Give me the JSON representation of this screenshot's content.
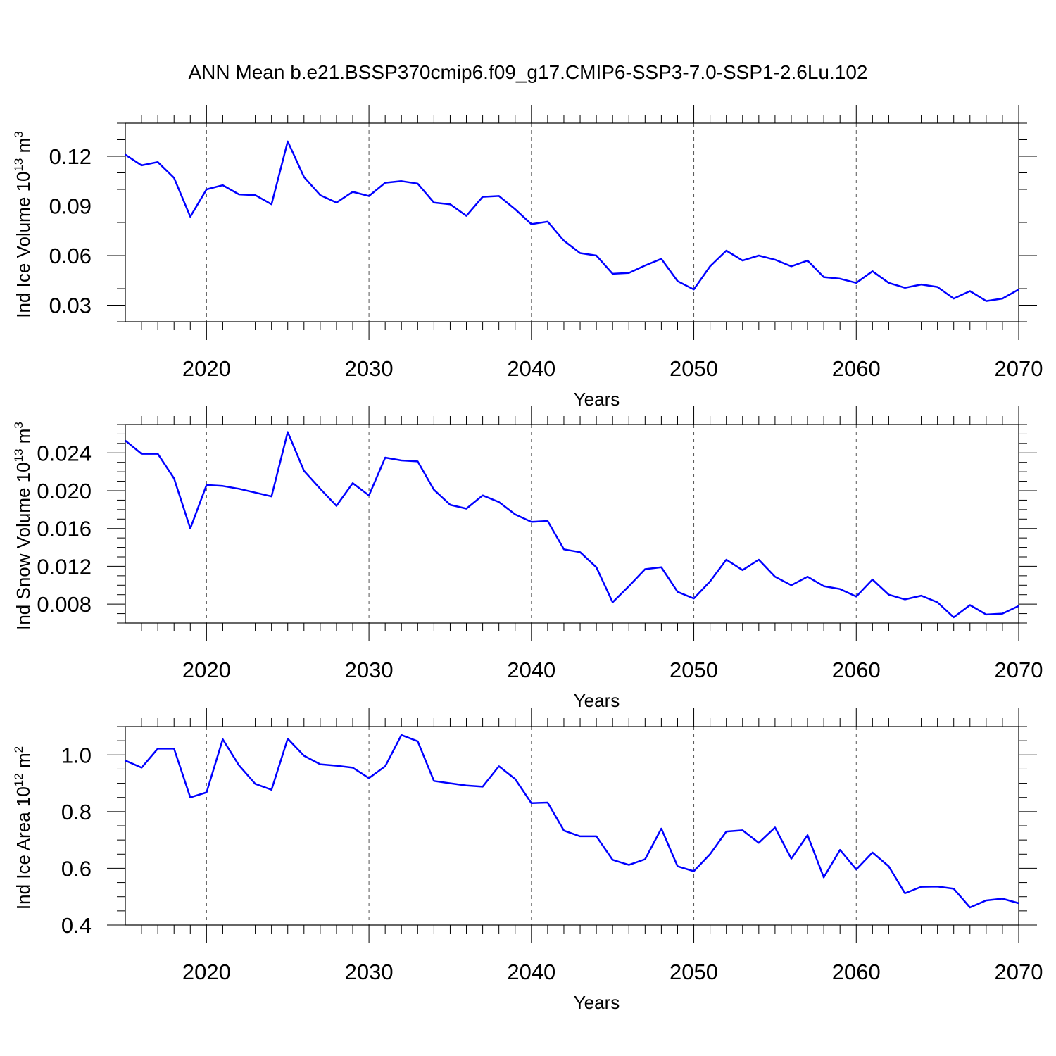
{
  "title": "ANN Mean b.e21.BSSP370cmip6.f09_g17.CMIP6-SSP3-7.0-SSP1-2.6Lu.102",
  "line_color": "#0000ff",
  "chart_data": [
    {
      "type": "line",
      "xlabel": "Years",
      "ylabel": "Ind Ice Volume 10",
      "ylabel_exp": "13",
      "ylabel_unit": " m",
      "ylabel_unit_exp": "3",
      "xlim": [
        2015,
        2070
      ],
      "ylim": [
        0.02,
        0.14
      ],
      "xticks": [
        "2020",
        "2030",
        "2040",
        "2050",
        "2060",
        "2070"
      ],
      "yticks": [
        "0.03",
        "0.06",
        "0.09",
        "0.12"
      ],
      "grid": "vertical dashed at major x ticks",
      "x": [
        2015,
        2016,
        2017,
        2018,
        2019,
        2020,
        2021,
        2022,
        2023,
        2024,
        2025,
        2026,
        2027,
        2028,
        2029,
        2030,
        2031,
        2032,
        2033,
        2034,
        2035,
        2036,
        2037,
        2038,
        2039,
        2040,
        2041,
        2042,
        2043,
        2044,
        2045,
        2046,
        2047,
        2048,
        2049,
        2050,
        2051,
        2052,
        2053,
        2054,
        2055,
        2056,
        2057,
        2058,
        2059,
        2060,
        2061,
        2062,
        2063,
        2064,
        2065,
        2066,
        2067,
        2068,
        2069,
        2070
      ],
      "y": [
        0.121,
        0.1145,
        0.1165,
        0.107,
        0.0835,
        0.1,
        0.1025,
        0.097,
        0.0965,
        0.091,
        0.129,
        0.1075,
        0.0965,
        0.092,
        0.0985,
        0.096,
        0.104,
        0.105,
        0.1035,
        0.092,
        0.091,
        0.084,
        0.0955,
        0.096,
        0.088,
        0.079,
        0.0805,
        0.069,
        0.0615,
        0.06,
        0.049,
        0.0495,
        0.054,
        0.058,
        0.0445,
        0.0395,
        0.0535,
        0.063,
        0.057,
        0.06,
        0.0575,
        0.0535,
        0.057,
        0.047,
        0.046,
        0.0435,
        0.0505,
        0.0435,
        0.0405,
        0.0425,
        0.041,
        0.034,
        0.0385,
        0.0325,
        0.034,
        0.0395
      ]
    },
    {
      "type": "line",
      "xlabel": "Years",
      "ylabel": "Ind Snow Volume 10",
      "ylabel_exp": "13",
      "ylabel_unit": " m",
      "ylabel_unit_exp": "3",
      "xlim": [
        2015,
        2070
      ],
      "ylim": [
        0.006,
        0.027
      ],
      "xticks": [
        "2020",
        "2030",
        "2040",
        "2050",
        "2060",
        "2070"
      ],
      "yticks": [
        "0.008",
        "0.012",
        "0.016",
        "0.020",
        "0.024"
      ],
      "grid": "vertical dashed at major x ticks",
      "x": [
        2015,
        2016,
        2017,
        2018,
        2019,
        2020,
        2021,
        2022,
        2023,
        2024,
        2025,
        2026,
        2027,
        2028,
        2029,
        2030,
        2031,
        2032,
        2033,
        2034,
        2035,
        2036,
        2037,
        2038,
        2039,
        2040,
        2041,
        2042,
        2043,
        2044,
        2045,
        2046,
        2047,
        2048,
        2049,
        2050,
        2051,
        2052,
        2053,
        2054,
        2055,
        2056,
        2057,
        2058,
        2059,
        2060,
        2061,
        2062,
        2063,
        2064,
        2065,
        2066,
        2067,
        2068,
        2069,
        2070
      ],
      "y": [
        0.0253,
        0.0239,
        0.0239,
        0.0213,
        0.016,
        0.0206,
        0.0205,
        0.0202,
        0.0198,
        0.0194,
        0.0262,
        0.0221,
        0.0202,
        0.0184,
        0.0208,
        0.0195,
        0.0235,
        0.0232,
        0.0231,
        0.0201,
        0.0185,
        0.0181,
        0.0195,
        0.0188,
        0.0175,
        0.0167,
        0.0168,
        0.0138,
        0.0135,
        0.0119,
        0.0082,
        0.0099,
        0.0117,
        0.0119,
        0.0093,
        0.0086,
        0.0104,
        0.0127,
        0.0116,
        0.0127,
        0.0109,
        0.01,
        0.0109,
        0.0099,
        0.0096,
        0.0088,
        0.0106,
        0.009,
        0.0085,
        0.0089,
        0.0082,
        0.0066,
        0.0079,
        0.0069,
        0.007,
        0.0078
      ]
    },
    {
      "type": "line",
      "xlabel": "Years",
      "ylabel": "Ind Ice Area 10",
      "ylabel_exp": "12",
      "ylabel_unit": " m",
      "ylabel_unit_exp": "2",
      "xlim": [
        2015,
        2070
      ],
      "ylim": [
        0.4,
        1.1
      ],
      "xticks": [
        "2020",
        "2030",
        "2040",
        "2050",
        "2060",
        "2070"
      ],
      "yticks": [
        "0.4",
        "0.6",
        "0.8",
        "1.0"
      ],
      "grid": "vertical dashed at major x ticks",
      "x": [
        2015,
        2016,
        2017,
        2018,
        2019,
        2020,
        2021,
        2022,
        2023,
        2024,
        2025,
        2026,
        2027,
        2028,
        2029,
        2030,
        2031,
        2032,
        2033,
        2034,
        2035,
        2036,
        2037,
        2038,
        2039,
        2040,
        2041,
        2042,
        2043,
        2044,
        2045,
        2046,
        2047,
        2048,
        2049,
        2050,
        2051,
        2052,
        2053,
        2054,
        2055,
        2056,
        2057,
        2058,
        2059,
        2060,
        2061,
        2062,
        2063,
        2064,
        2065,
        2066,
        2067,
        2068,
        2069,
        2070
      ],
      "y": [
        0.98,
        0.955,
        1.022,
        1.022,
        0.85,
        0.868,
        1.055,
        0.963,
        0.898,
        0.877,
        1.057,
        0.997,
        0.967,
        0.962,
        0.955,
        0.918,
        0.96,
        1.07,
        1.048,
        0.908,
        0.9,
        0.892,
        0.888,
        0.96,
        0.915,
        0.83,
        0.832,
        0.733,
        0.713,
        0.713,
        0.63,
        0.612,
        0.632,
        0.74,
        0.607,
        0.59,
        0.65,
        0.73,
        0.734,
        0.69,
        0.744,
        0.634,
        0.717,
        0.568,
        0.665,
        0.596,
        0.656,
        0.607,
        0.512,
        0.535,
        0.536,
        0.528,
        0.462,
        0.487,
        0.493,
        0.477
      ]
    }
  ]
}
